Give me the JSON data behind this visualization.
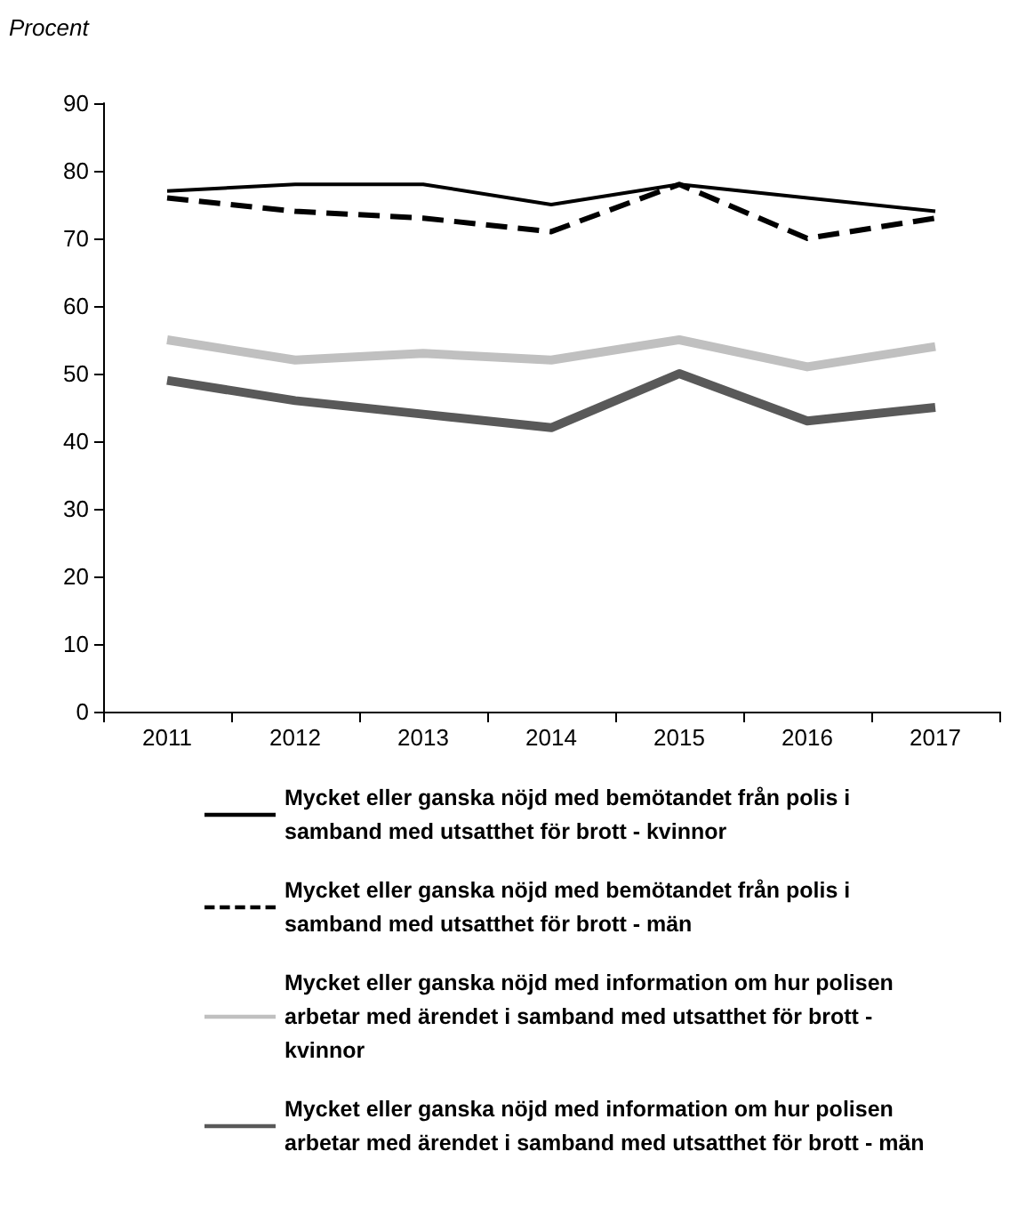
{
  "chart_data": {
    "type": "line",
    "ylabel": "Procent",
    "categories": [
      "2011",
      "2012",
      "2013",
      "2014",
      "2015",
      "2016",
      "2017"
    ],
    "series": [
      {
        "name": "Mycket eller ganska nöjd med bemötandet från polis i samband med utsatthet för brott - kvinnor",
        "color": "#000000",
        "line_style": "solid",
        "values": [
          77,
          78,
          78,
          75,
          78,
          76,
          74
        ]
      },
      {
        "name": "Mycket eller ganska nöjd med bemötandet från polis i samband med utsatthet för brott - män",
        "color": "#000000",
        "line_style": "dashed",
        "values": [
          76,
          74,
          73,
          71,
          78,
          70,
          73
        ]
      },
      {
        "name": "Mycket eller ganska nöjd med information om hur polisen arbetar med ärendet i samband med utsatthet för brott - kvinnor",
        "color": "#c0c0c0",
        "line_style": "solid",
        "values": [
          55,
          52,
          53,
          52,
          55,
          51,
          54
        ]
      },
      {
        "name": "Mycket eller ganska nöjd med information om hur polisen arbetar med ärendet i samband med utsatthet för brott - män",
        "color": "#595959",
        "line_style": "solid",
        "values": [
          49,
          46,
          44,
          42,
          50,
          43,
          45
        ]
      }
    ],
    "ylim": [
      0,
      90
    ],
    "yticks": [
      0,
      10,
      20,
      30,
      40,
      50,
      60,
      70,
      80,
      90
    ],
    "grid": false,
    "legend": "bottom",
    "marker": "none"
  }
}
